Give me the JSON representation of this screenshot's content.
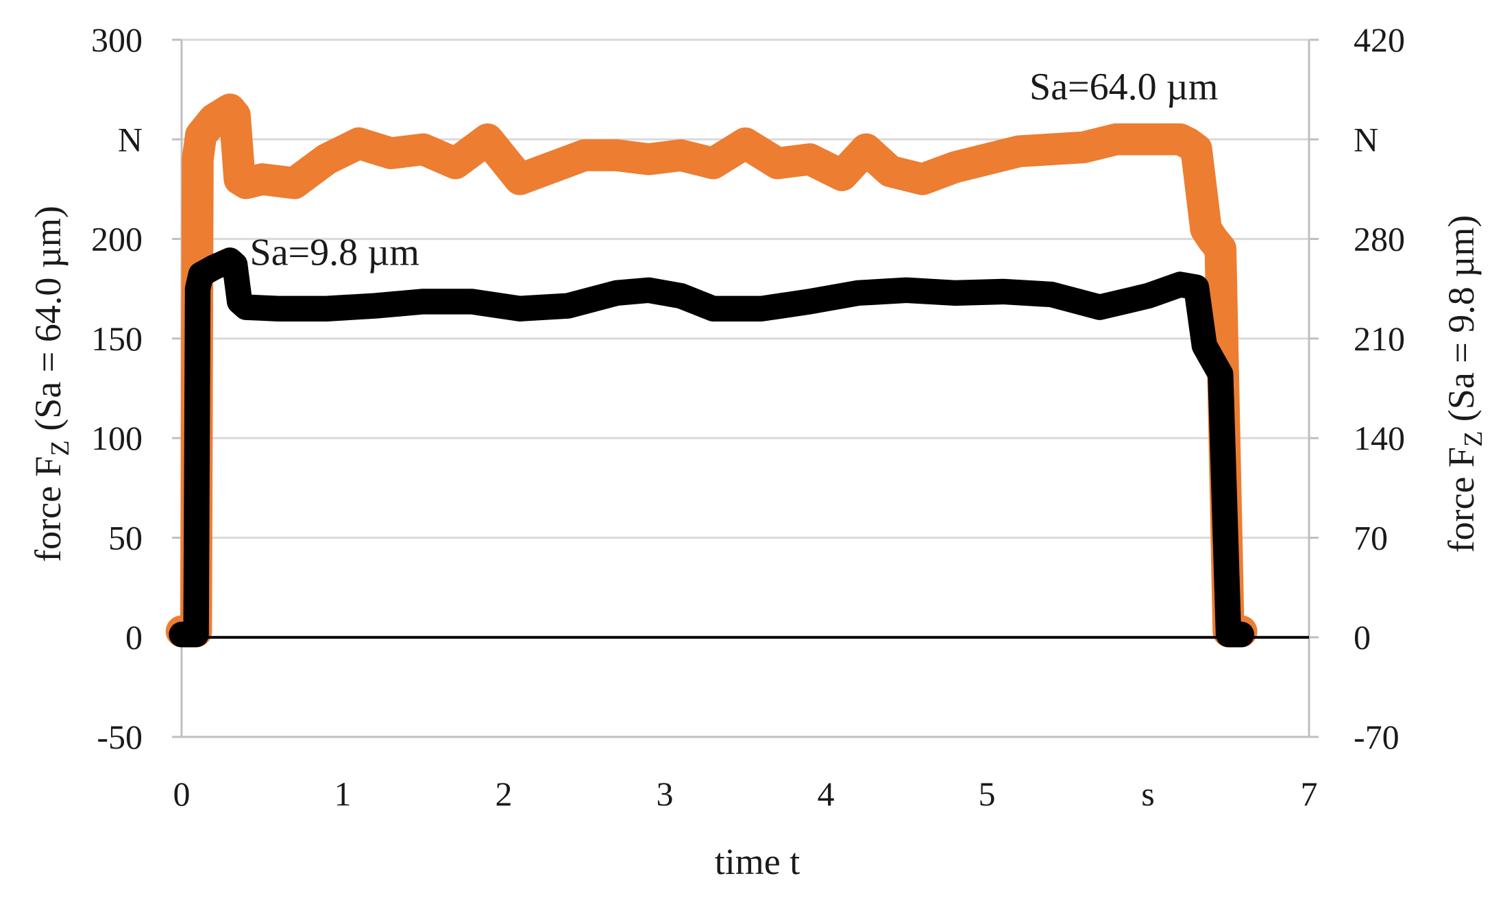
{
  "chart_data": {
    "type": "line",
    "xlabel": "time t",
    "ylabel_left_main": "force F",
    "ylabel_left_sub": "Z",
    "ylabel_left_rest": " (Sa = 64.0 µm)",
    "ylabel_right_main": "force F",
    "ylabel_right_sub": "Z",
    "ylabel_right_rest": " (Sa = 9.8 µm)",
    "xlim": [
      0,
      7
    ],
    "ylim_left": [
      -50,
      300
    ],
    "ylim_right": [
      -70,
      420
    ],
    "x_ticks": [
      "0",
      "1",
      "2",
      "3",
      "4",
      "5",
      "s",
      "7"
    ],
    "y_ticks_left": [
      "-50",
      "0",
      "50",
      "100",
      "150",
      "200",
      "N",
      "300"
    ],
    "y_ticks_right": [
      "-70",
      "0",
      "70",
      "140",
      "210",
      "280",
      "N",
      "420"
    ],
    "grid": true,
    "colors": {
      "sa64": "#ED7D31",
      "sa98": "#000000",
      "grid": "#D9D9D9",
      "frame": "#BFBFBF"
    },
    "series": [
      {
        "name": "Sa=64.0 µm",
        "axis": "left",
        "x": [
          0,
          0.09,
          0.1,
          0.12,
          0.2,
          0.3,
          0.33,
          0.36,
          0.4,
          0.5,
          0.7,
          0.9,
          1.1,
          1.3,
          1.5,
          1.7,
          1.9,
          2.1,
          2.3,
          2.5,
          2.7,
          2.9,
          3.1,
          3.3,
          3.5,
          3.7,
          3.9,
          4.1,
          4.25,
          4.4,
          4.6,
          4.8,
          5.0,
          5.2,
          5.4,
          5.6,
          5.8,
          6.0,
          6.1,
          6.2,
          6.25,
          6.3,
          6.36,
          6.4,
          6.45,
          6.48,
          6.5,
          6.58
        ],
        "values": [
          3,
          3,
          240,
          252,
          260,
          265,
          262,
          230,
          228,
          230,
          228,
          240,
          248,
          243,
          245,
          238,
          250,
          230,
          236,
          242,
          242,
          240,
          242,
          238,
          248,
          238,
          240,
          232,
          245,
          234,
          230,
          236,
          240,
          244,
          245,
          246,
          250,
          250,
          250,
          250,
          248,
          245,
          205,
          200,
          195,
          80,
          3,
          3
        ],
        "band": 8
      },
      {
        "name": "Sa=9.8 µm",
        "axis": "right",
        "x": [
          0,
          0.09,
          0.1,
          0.12,
          0.2,
          0.3,
          0.33,
          0.36,
          0.4,
          0.6,
          0.9,
          1.2,
          1.5,
          1.8,
          2.1,
          2.4,
          2.7,
          2.9,
          3.1,
          3.3,
          3.6,
          3.9,
          4.2,
          4.5,
          4.8,
          5.1,
          5.4,
          5.7,
          6.0,
          6.2,
          6.3,
          6.35,
          6.4,
          6.45,
          6.5,
          6.58
        ],
        "values": [
          2,
          2,
          245,
          255,
          260,
          265,
          262,
          236,
          232,
          231,
          231,
          233,
          236,
          236,
          231,
          233,
          242,
          244,
          240,
          231,
          231,
          236,
          242,
          244,
          242,
          243,
          241,
          232,
          240,
          248,
          246,
          205,
          195,
          185,
          2,
          2
        ],
        "band": 9
      }
    ],
    "annotations": [
      {
        "text": "Sa=64.0 µm",
        "x": 5.85,
        "y": 270,
        "axis": "left"
      },
      {
        "text": "Sa=9.8 µm",
        "x": 0.95,
        "y": 187,
        "axis": "left"
      }
    ]
  }
}
